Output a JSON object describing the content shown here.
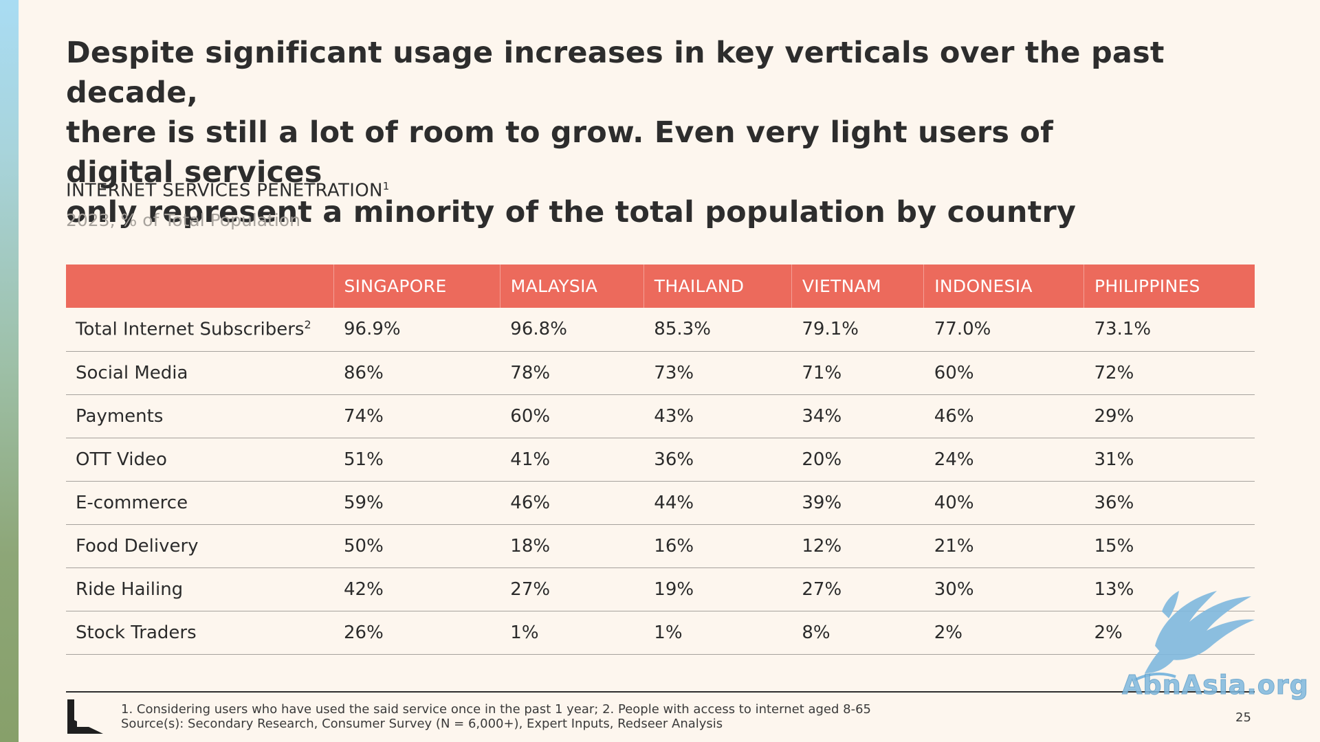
{
  "headline": {
    "line1": "Despite significant usage increases in key verticals over the past decade,",
    "line2": "there is still a lot of room to grow. Even very light users of digital services",
    "line3": "only represent a minority of the total population by country"
  },
  "chart": {
    "title": "INTERNET SERVICES PENETRATION",
    "title_sup": "1",
    "subtitle": "2023, % of Total Population"
  },
  "table": {
    "columns": [
      "",
      "SINGAPORE",
      "MALAYSIA",
      "THAILAND",
      "VIETNAM",
      "INDONESIA",
      "PHILIPPINES"
    ],
    "rows": [
      {
        "label": "Total Internet Subscribers",
        "label_sup": "2",
        "values": [
          "96.9%",
          "96.8%",
          "85.3%",
          "79.1%",
          "77.0%",
          "73.1%"
        ]
      },
      {
        "label": "Social Media",
        "label_sup": "",
        "values": [
          "86%",
          "78%",
          "73%",
          "71%",
          "60%",
          "72%"
        ]
      },
      {
        "label": "Payments",
        "label_sup": "",
        "values": [
          "74%",
          "60%",
          "43%",
          "34%",
          "46%",
          "29%"
        ]
      },
      {
        "label": "OTT Video",
        "label_sup": "",
        "values": [
          "51%",
          "41%",
          "36%",
          "20%",
          "24%",
          "31%"
        ]
      },
      {
        "label": "E-commerce",
        "label_sup": "",
        "values": [
          "59%",
          "46%",
          "44%",
          "39%",
          "40%",
          "36%"
        ]
      },
      {
        "label": "Food Delivery",
        "label_sup": "",
        "values": [
          "50%",
          "18%",
          "16%",
          "12%",
          "21%",
          "15%"
        ]
      },
      {
        "label": "Ride Hailing",
        "label_sup": "",
        "values": [
          "42%",
          "27%",
          "19%",
          "27%",
          "30%",
          "13%"
        ]
      },
      {
        "label": "Stock Traders",
        "label_sup": "",
        "values": [
          "26%",
          "1%",
          "1%",
          "8%",
          "2%",
          "2%"
        ]
      }
    ]
  },
  "footer": {
    "note": "1. Considering users who have used the said service once in the past 1 year; 2. People with access to internet aged 8-65",
    "source": "Source(s): Secondary Research, Consumer Survey (N = 6,000+), Expert Inputs, Redseer Analysis",
    "page_number": "25"
  },
  "watermark": {
    "text": "AbnAsia.org",
    "color": "#7fb8de"
  },
  "colors": {
    "header_bg": "#ec6a5c",
    "page_bg": "#fdf6ee"
  }
}
